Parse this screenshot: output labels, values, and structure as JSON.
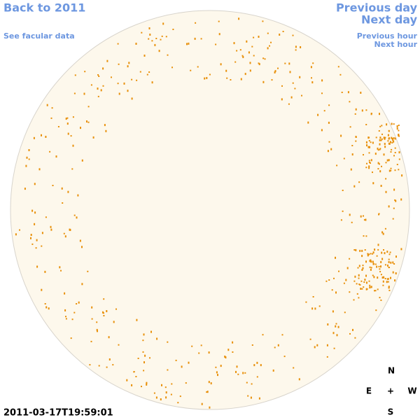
{
  "header": {
    "back": "Back to 2011",
    "facular": "See facular data",
    "previous_day": "Previous day",
    "next_day": "Next day",
    "previous_hour": "Previous hour",
    "next_hour": "Next hour"
  },
  "timestamp": "2011-03-17T19:59:01",
  "compass": {
    "north": "N",
    "east": "E",
    "center": "+",
    "west": "W",
    "south": "S"
  }
}
